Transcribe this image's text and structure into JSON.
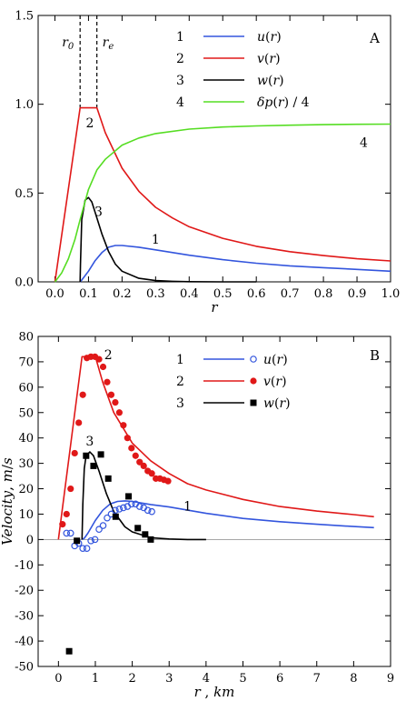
{
  "colors": {
    "u": "#3355dd",
    "v": "#e01818",
    "w": "#000000",
    "dp": "#55dd22",
    "axis": "#000000"
  },
  "chart_data": [
    {
      "type": "line",
      "panel_label": "A",
      "xlabel": "r",
      "xlim": [
        -0.05,
        1.0
      ],
      "ylim": [
        0,
        1.5
      ],
      "xticks": [
        0.0,
        0.1,
        0.2,
        0.3,
        0.4,
        0.5,
        0.6,
        0.7,
        0.8,
        0.9,
        1.0
      ],
      "xtick_labels": [
        "0.0",
        "0.1",
        "0.2",
        "0.3",
        "0.4",
        "0.5",
        "0.6",
        "0.7",
        "0.8",
        "0.9",
        "1.0"
      ],
      "yticks": [
        0.0,
        0.5,
        1.0,
        1.5
      ],
      "ytick_labels": [
        "0.0",
        "0.5",
        "1.0",
        "1.5"
      ],
      "vlines": [
        {
          "x": 0.075,
          "label": "r",
          "sub": "0"
        },
        {
          "x": 0.125,
          "label": "r",
          "sub": "e"
        }
      ],
      "legend": [
        {
          "num": "1",
          "text": "u(r)",
          "color": "#3355dd"
        },
        {
          "num": "2",
          "text": "v(r)",
          "color": "#e01818"
        },
        {
          "num": "3",
          "text": "w(r)",
          "color": "#000000"
        },
        {
          "num": "4",
          "text": "δp(r) / 4",
          "color": "#55dd22"
        }
      ],
      "series": [
        {
          "id": "1",
          "color": "#3355dd",
          "x": [
            0.075,
            0.08,
            0.1,
            0.12,
            0.14,
            0.16,
            0.18,
            0.2,
            0.25,
            0.3,
            0.4,
            0.5,
            0.6,
            0.7,
            0.8,
            0.9,
            1.0
          ],
          "y": [
            0.0,
            0.01,
            0.06,
            0.12,
            0.165,
            0.195,
            0.205,
            0.205,
            0.195,
            0.18,
            0.15,
            0.125,
            0.105,
            0.09,
            0.08,
            0.07,
            0.06
          ]
        },
        {
          "id": "2",
          "color": "#e01818",
          "x": [
            0.0,
            0.075,
            0.125,
            0.15,
            0.2,
            0.25,
            0.3,
            0.35,
            0.4,
            0.5,
            0.6,
            0.7,
            0.8,
            0.9,
            1.0
          ],
          "y": [
            0.0,
            0.98,
            0.98,
            0.84,
            0.64,
            0.51,
            0.42,
            0.36,
            0.31,
            0.245,
            0.2,
            0.17,
            0.148,
            0.13,
            0.118
          ]
        },
        {
          "id": "3",
          "color": "#000000",
          "x": [
            0.075,
            0.076,
            0.08,
            0.09,
            0.1,
            0.11,
            0.12,
            0.14,
            0.16,
            0.18,
            0.2,
            0.25,
            0.3,
            0.35,
            0.4,
            0.5,
            0.6
          ],
          "y": [
            0.0,
            0.1,
            0.35,
            0.46,
            0.475,
            0.45,
            0.39,
            0.27,
            0.17,
            0.1,
            0.06,
            0.02,
            0.007,
            0.003,
            0.001,
            0.0,
            0.0
          ]
        },
        {
          "id": "4",
          "color": "#55dd22",
          "x": [
            0.0,
            0.02,
            0.04,
            0.06,
            0.075,
            0.1,
            0.125,
            0.15,
            0.2,
            0.25,
            0.3,
            0.4,
            0.5,
            0.6,
            0.7,
            0.8,
            0.9,
            1.0
          ],
          "y": [
            0.0,
            0.05,
            0.13,
            0.24,
            0.35,
            0.52,
            0.63,
            0.69,
            0.77,
            0.81,
            0.835,
            0.86,
            0.872,
            0.878,
            0.882,
            0.885,
            0.887,
            0.888
          ]
        }
      ],
      "curve_labels": [
        {
          "text": "2",
          "x": 0.104,
          "y": 0.87
        },
        {
          "text": "3",
          "x": 0.13,
          "y": 0.37
        },
        {
          "text": "1",
          "x": 0.3,
          "y": 0.215
        },
        {
          "text": "4",
          "x": 0.92,
          "y": 0.76
        }
      ]
    },
    {
      "type": "line",
      "panel_label": "B",
      "xlabel": "r ,  km",
      "ylabel": "Velocity,  m/s",
      "xlim": [
        -0.55,
        9
      ],
      "ylim": [
        -50,
        80
      ],
      "xticks": [
        0,
        1,
        2,
        3,
        4,
        5,
        6,
        7,
        8,
        9
      ],
      "xtick_labels": [
        "0",
        "1",
        "2",
        "3",
        "4",
        "5",
        "6",
        "7",
        "8",
        "9"
      ],
      "yticks": [
        -50,
        -40,
        -30,
        -20,
        -10,
        0,
        10,
        20,
        30,
        40,
        50,
        60,
        70,
        80
      ],
      "ytick_labels": [
        "-50",
        "-40",
        "-30",
        "-20",
        "-10",
        "0",
        "10",
        "20",
        "30",
        "40",
        "50",
        "60",
        "70",
        "80"
      ],
      "legend": [
        {
          "num": "1",
          "text": "u(r)",
          "color": "#3355dd",
          "marker": "open-circle"
        },
        {
          "num": "2",
          "text": "v(r)",
          "color": "#e01818",
          "marker": "filled-circle"
        },
        {
          "num": "3",
          "text": "w(r)",
          "color": "#000000",
          "marker": "filled-square"
        }
      ],
      "series": [
        {
          "id": "1",
          "color": "#3355dd",
          "x": [
            0.64,
            0.7,
            0.8,
            1.0,
            1.2,
            1.4,
            1.6,
            1.8,
            2.0,
            2.5,
            3.0,
            4.0,
            5.0,
            6.0,
            7.0,
            8.0,
            8.55
          ],
          "y": [
            0,
            0.5,
            2.5,
            7.5,
            11.5,
            14,
            15,
            15.2,
            15,
            13.8,
            12.8,
            10.3,
            8.3,
            7,
            6,
            5.1,
            4.7
          ]
        },
        {
          "id": "2",
          "color": "#e01818",
          "x": [
            0.0,
            0.64,
            1.0,
            1.2,
            1.5,
            2.0,
            2.5,
            3.0,
            3.5,
            4.0,
            5.0,
            6.0,
            7.0,
            8.0,
            8.55
          ],
          "y": [
            0,
            72,
            72,
            62,
            50,
            38,
            31,
            26,
            22,
            19.5,
            15.8,
            13,
            11.2,
            9.8,
            9
          ]
        },
        {
          "id": "3",
          "color": "#000000",
          "x": [
            0.64,
            0.66,
            0.7,
            0.75,
            0.85,
            0.95,
            1.1,
            1.3,
            1.5,
            1.8,
            2.0,
            2.5,
            3.0,
            3.5,
            4.0
          ],
          "y": [
            0,
            14,
            28,
            33,
            34.5,
            33,
            27,
            18,
            11,
            5,
            3,
            0.7,
            0.2,
            0,
            0
          ]
        }
      ],
      "markers": [
        {
          "id": "u",
          "shape": "open-circle",
          "color": "#3355dd",
          "x": [
            0.22,
            0.33,
            0.44,
            0.55,
            0.66,
            0.77,
            0.88,
            0.99,
            1.1,
            1.21,
            1.32,
            1.43,
            1.54,
            1.65,
            1.76,
            1.87,
            1.98,
            2.09,
            2.2,
            2.31,
            2.42,
            2.53
          ],
          "y": [
            2.5,
            2.5,
            -2.5,
            -1.5,
            -3.5,
            -3.5,
            -0.5,
            0,
            4,
            5.5,
            8.5,
            10,
            11.5,
            12,
            12.5,
            13,
            14,
            14,
            13,
            12.5,
            11.5,
            11
          ]
        },
        {
          "id": "v",
          "shape": "filled-circle",
          "color": "#e01818",
          "x": [
            0.11,
            0.22,
            0.33,
            0.44,
            0.55,
            0.66,
            0.77,
            0.88,
            0.99,
            1.1,
            1.21,
            1.32,
            1.43,
            1.54,
            1.65,
            1.76,
            1.87,
            1.98,
            2.09,
            2.2,
            2.31,
            2.42,
            2.53,
            2.64,
            2.75,
            2.86,
            2.97
          ],
          "y": [
            6,
            10,
            20,
            34,
            46,
            57,
            71.5,
            72,
            72,
            71,
            68,
            62,
            57,
            54,
            50,
            45,
            40,
            36,
            33,
            30.5,
            29,
            27,
            26,
            24,
            24,
            23.5,
            23
          ]
        },
        {
          "id": "w",
          "shape": "filled-square",
          "color": "#000000",
          "x": [
            0.29,
            0.5,
            0.75,
            0.95,
            1.15,
            1.35,
            1.55,
            1.9,
            2.15,
            2.35,
            2.5
          ],
          "y": [
            -44,
            -0.5,
            33,
            29,
            33.5,
            24,
            9,
            17,
            4.5,
            2,
            0
          ]
        }
      ],
      "curve_labels": [
        {
          "text": "2",
          "x": 1.35,
          "y": 71
        },
        {
          "text": "3",
          "x": 0.85,
          "y": 37
        },
        {
          "text": "1",
          "x": 3.5,
          "y": 11.5
        }
      ]
    }
  ]
}
